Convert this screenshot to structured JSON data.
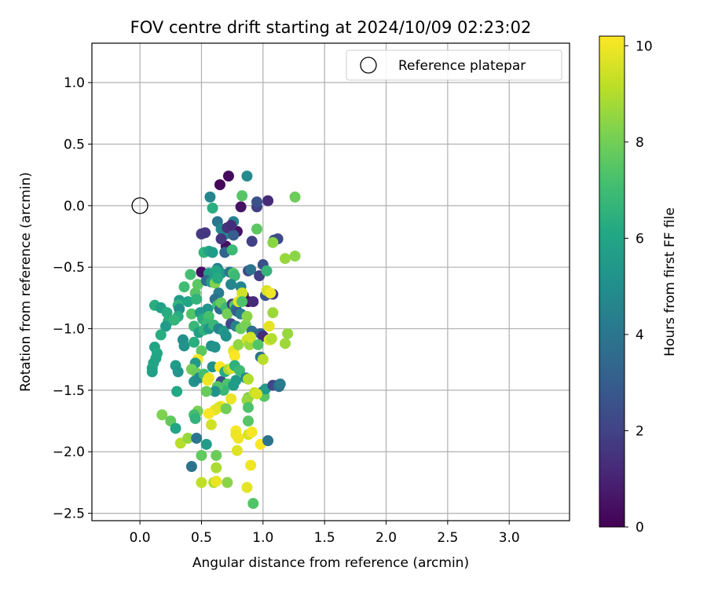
{
  "chart_data": {
    "type": "scatter",
    "title": "FOV centre drift starting at 2024/10/09 02:23:02",
    "xlabel": "Angular distance from reference (arcmin)",
    "ylabel": "Rotation from reference (arcmin)",
    "xlim": [
      -0.39,
      3.49
    ],
    "ylim": [
      -2.56,
      1.32
    ],
    "x_ticks": [
      0.0,
      0.5,
      1.0,
      1.5,
      2.0,
      2.5,
      3.0
    ],
    "x_tick_labels": [
      "0.0",
      "0.5",
      "1.0",
      "1.5",
      "2.0",
      "2.5",
      "3.0"
    ],
    "y_ticks": [
      1.0,
      0.5,
      0.0,
      -0.5,
      -1.0,
      -1.5,
      -2.0,
      -2.5
    ],
    "y_tick_labels": [
      "1.0",
      "0.5",
      "0.0",
      "−0.5",
      "−1.0",
      "−1.5",
      "−2.0",
      "−2.5"
    ],
    "grid": true,
    "legend": {
      "placement": "upper right",
      "entries": [
        "Reference platepar"
      ]
    },
    "reference_point": {
      "x": 0.0,
      "y": 0.0,
      "label": "Reference platepar"
    },
    "colorbar": {
      "label": "Hours from first FF file",
      "range": [
        0,
        10.2
      ],
      "ticks": [
        0,
        2,
        4,
        6,
        8,
        10
      ],
      "tick_labels": [
        "0",
        "2",
        "4",
        "6",
        "8",
        "10"
      ],
      "colormap": "viridis"
    },
    "series": [
      {
        "fields": [
          "x",
          "y",
          "hours"
        ],
        "points": [
          [
            0.72,
            0.24,
            0.3
          ],
          [
            0.65,
            0.17,
            0.2
          ],
          [
            0.82,
            -0.01,
            0.5
          ],
          [
            0.95,
            -0.01,
            1.9
          ],
          [
            1.04,
            0.04,
            1.2
          ],
          [
            0.95,
            0.03,
            2.5
          ],
          [
            0.87,
            0.24,
            4.8
          ],
          [
            0.57,
            0.07,
            4.6
          ],
          [
            0.59,
            -0.02,
            6.4
          ],
          [
            0.83,
            0.08,
            7.5
          ],
          [
            1.26,
            0.07,
            7.9
          ],
          [
            0.5,
            -0.23,
            1.8
          ],
          [
            0.53,
            -0.22,
            1.6
          ],
          [
            0.63,
            -0.13,
            3.9
          ],
          [
            0.66,
            -0.19,
            4.6
          ],
          [
            0.7,
            -0.23,
            4.8
          ],
          [
            0.71,
            -0.18,
            1.5
          ],
          [
            0.76,
            -0.13,
            4.5
          ],
          [
            0.79,
            -0.21,
            0.5
          ],
          [
            0.76,
            -0.24,
            3.0
          ],
          [
            0.74,
            -0.16,
            1.3
          ],
          [
            0.7,
            -0.33,
            0.4
          ],
          [
            0.69,
            -0.38,
            3.3
          ],
          [
            0.66,
            -0.27,
            1.6
          ],
          [
            0.91,
            -0.29,
            1.9
          ],
          [
            0.95,
            -0.19,
            7.6
          ],
          [
            1.09,
            -0.28,
            2.5
          ],
          [
            1.12,
            -0.27,
            2.3
          ],
          [
            1.08,
            -0.3,
            8.4
          ],
          [
            0.52,
            -0.38,
            6.6
          ],
          [
            0.56,
            -0.37,
            6.0
          ],
          [
            0.59,
            -0.38,
            5.6
          ],
          [
            0.75,
            -0.36,
            6.9
          ],
          [
            1.18,
            -0.43,
            8.6
          ],
          [
            1.26,
            -0.41,
            8.4
          ],
          [
            0.5,
            -0.54,
            0.4
          ],
          [
            0.56,
            -0.55,
            5.6
          ],
          [
            0.63,
            -0.51,
            4.4
          ],
          [
            0.66,
            -0.55,
            5.3
          ],
          [
            0.62,
            -0.53,
            6.0
          ],
          [
            0.73,
            -0.54,
            4.1
          ],
          [
            0.76,
            -0.55,
            7.4
          ],
          [
            0.77,
            -0.57,
            6.9
          ],
          [
            0.88,
            -0.53,
            2.1
          ],
          [
            0.9,
            -0.52,
            4.0
          ],
          [
            0.97,
            -0.57,
            1.9
          ],
          [
            1.0,
            -0.48,
            2.5
          ],
          [
            1.03,
            -0.53,
            6.7
          ],
          [
            0.41,
            -0.56,
            7.1
          ],
          [
            0.36,
            -0.66,
            7.0
          ],
          [
            0.45,
            -0.71,
            7.5
          ],
          [
            0.47,
            -0.64,
            7.6
          ],
          [
            0.54,
            -0.61,
            3.5
          ],
          [
            0.58,
            -0.62,
            5.6
          ],
          [
            0.61,
            -0.63,
            8.3
          ],
          [
            0.64,
            -0.71,
            4.3
          ],
          [
            0.63,
            -0.59,
            6.2
          ],
          [
            0.74,
            -0.64,
            4.7
          ],
          [
            0.82,
            -0.66,
            4.6
          ],
          [
            0.84,
            -0.73,
            1.0
          ],
          [
            0.88,
            -0.78,
            0.4
          ],
          [
            0.92,
            -0.78,
            1.2
          ],
          [
            0.83,
            -0.71,
            9.5
          ],
          [
            1.02,
            -0.73,
            2.7
          ],
          [
            1.08,
            -0.72,
            1.8
          ],
          [
            1.03,
            -0.69,
            9.6
          ],
          [
            1.06,
            -0.71,
            10.0
          ],
          [
            0.12,
            -0.81,
            6.4
          ],
          [
            0.17,
            -0.83,
            5.8
          ],
          [
            0.32,
            -0.77,
            5.6
          ],
          [
            0.31,
            -0.81,
            6.6
          ],
          [
            0.32,
            -0.84,
            5.0
          ],
          [
            0.39,
            -0.78,
            6.0
          ],
          [
            0.42,
            -0.88,
            7.4
          ],
          [
            0.46,
            -0.76,
            6.6
          ],
          [
            0.49,
            -0.87,
            5.3
          ],
          [
            0.51,
            -0.92,
            6.3
          ],
          [
            0.55,
            -0.84,
            5.3
          ],
          [
            0.56,
            -0.9,
            7.2
          ],
          [
            0.61,
            -0.76,
            3.8
          ],
          [
            0.63,
            -0.81,
            7.1
          ],
          [
            0.65,
            -0.84,
            3.7
          ],
          [
            0.66,
            -0.79,
            7.8
          ],
          [
            0.7,
            -0.83,
            6.9
          ],
          [
            0.71,
            -0.88,
            8.0
          ],
          [
            0.75,
            -0.8,
            1.8
          ],
          [
            0.77,
            -0.81,
            7.5
          ],
          [
            0.78,
            -0.84,
            4.1
          ],
          [
            0.79,
            -0.86,
            3.0
          ],
          [
            0.82,
            -0.88,
            4.3
          ],
          [
            0.8,
            -0.78,
            9.7
          ],
          [
            0.83,
            -0.78,
            7.3
          ],
          [
            1.08,
            -0.87,
            8.7
          ],
          [
            0.22,
            -0.87,
            6.3
          ],
          [
            0.23,
            -0.94,
            6.4
          ],
          [
            0.21,
            -0.98,
            5.6
          ],
          [
            0.31,
            -0.9,
            6.3
          ],
          [
            0.28,
            -0.93,
            6.7
          ],
          [
            0.44,
            -0.98,
            6.8
          ],
          [
            0.48,
            -1.03,
            5.7
          ],
          [
            0.54,
            -0.96,
            6.8
          ],
          [
            0.52,
            -1.01,
            6.6
          ],
          [
            0.56,
            -1.0,
            5.4
          ],
          [
            0.6,
            -0.97,
            6.8
          ],
          [
            0.64,
            -1.0,
            4.6
          ],
          [
            0.68,
            -1.02,
            5.4
          ],
          [
            0.7,
            -1.06,
            5.1
          ],
          [
            0.74,
            -0.96,
            2.2
          ],
          [
            0.78,
            -0.98,
            4.5
          ],
          [
            0.82,
            -1.0,
            7.9
          ],
          [
            0.86,
            -0.97,
            8.1
          ],
          [
            0.87,
            -0.9,
            8.4
          ],
          [
            0.91,
            -1.02,
            3.8
          ],
          [
            0.98,
            -1.04,
            3.2
          ],
          [
            1.0,
            -1.06,
            1.3
          ],
          [
            1.05,
            -0.98,
            9.8
          ],
          [
            1.05,
            -1.09,
            9.7
          ],
          [
            1.2,
            -1.04,
            8.6
          ],
          [
            0.17,
            -1.05,
            6.3
          ],
          [
            0.12,
            -1.15,
            6.0
          ],
          [
            0.14,
            -1.2,
            6.1
          ],
          [
            0.13,
            -1.24,
            6.0
          ],
          [
            0.11,
            -1.28,
            5.9
          ],
          [
            0.1,
            -1.32,
            6.0
          ],
          [
            0.1,
            -1.35,
            5.7
          ],
          [
            0.35,
            -1.09,
            5.0
          ],
          [
            0.36,
            -1.14,
            5.2
          ],
          [
            0.44,
            -1.11,
            6.4
          ],
          [
            0.5,
            -1.18,
            7.6
          ],
          [
            0.47,
            -1.25,
            10.1
          ],
          [
            0.45,
            -1.28,
            5.5
          ],
          [
            0.58,
            -1.14,
            5.1
          ],
          [
            0.61,
            -1.15,
            5.2
          ],
          [
            0.76,
            -1.18,
            9.8
          ],
          [
            0.77,
            -1.22,
            10.1
          ],
          [
            0.8,
            -1.13,
            8.5
          ],
          [
            0.87,
            -1.09,
            9.5
          ],
          [
            0.89,
            -1.13,
            8.7
          ],
          [
            0.9,
            -1.07,
            9.5
          ],
          [
            0.96,
            -1.13,
            7.4
          ],
          [
            0.98,
            -1.23,
            3.9
          ],
          [
            1.0,
            -1.25,
            9.1
          ],
          [
            1.06,
            -1.09,
            9.5
          ],
          [
            1.07,
            -1.08,
            9.0
          ],
          [
            1.18,
            -1.12,
            8.7
          ],
          [
            0.29,
            -1.3,
            5.6
          ],
          [
            0.31,
            -1.35,
            5.3
          ],
          [
            0.42,
            -1.33,
            8.0
          ],
          [
            0.46,
            -1.36,
            7.9
          ],
          [
            0.44,
            -1.43,
            5.2
          ],
          [
            0.48,
            -1.4,
            4.8
          ],
          [
            0.52,
            -1.37,
            7.1
          ],
          [
            0.55,
            -1.42,
            10.1
          ],
          [
            0.56,
            -1.4,
            9.9
          ],
          [
            0.59,
            -1.31,
            5.1
          ],
          [
            0.65,
            -1.31,
            10.2
          ],
          [
            0.66,
            -1.43,
            2.3
          ],
          [
            0.69,
            -1.35,
            6.2
          ],
          [
            0.72,
            -1.33,
            8.9
          ],
          [
            0.75,
            -1.32,
            9.6
          ],
          [
            0.77,
            -1.3,
            6.5
          ],
          [
            0.78,
            -1.42,
            5.5
          ],
          [
            0.81,
            -1.34,
            6.9
          ],
          [
            0.86,
            -1.4,
            4.9
          ],
          [
            0.88,
            -1.41,
            9.0
          ],
          [
            0.71,
            -1.45,
            7.3
          ],
          [
            0.76,
            -1.46,
            5.6
          ],
          [
            0.68,
            -1.5,
            6.8
          ],
          [
            0.63,
            -1.47,
            7.4
          ],
          [
            0.61,
            -1.51,
            5.2
          ],
          [
            0.54,
            -1.51,
            7.8
          ],
          [
            0.3,
            -1.51,
            6.1
          ],
          [
            0.88,
            -1.56,
            8.2
          ],
          [
            0.93,
            -1.52,
            9.3
          ],
          [
            1.0,
            -1.51,
            4.1
          ],
          [
            1.01,
            -1.55,
            7.5
          ],
          [
            1.02,
            -1.49,
            5.6
          ],
          [
            1.08,
            -1.46,
            2.2
          ],
          [
            1.12,
            -1.46,
            2.6
          ],
          [
            1.13,
            -1.47,
            3.7
          ],
          [
            1.14,
            -1.45,
            4.2
          ],
          [
            0.95,
            -1.53,
            9.6
          ],
          [
            0.87,
            -1.58,
            8.6
          ],
          [
            0.74,
            -1.57,
            9.9
          ],
          [
            0.66,
            -1.63,
            10.2
          ],
          [
            0.64,
            -1.64,
            9.5
          ],
          [
            0.7,
            -1.65,
            8.0
          ],
          [
            0.61,
            -1.66,
            9.8
          ],
          [
            0.56,
            -1.69,
            10.1
          ],
          [
            0.47,
            -1.67,
            8.1
          ],
          [
            0.44,
            -1.7,
            7.1
          ],
          [
            0.45,
            -1.73,
            6.6
          ],
          [
            0.18,
            -1.7,
            8.2
          ],
          [
            0.25,
            -1.75,
            7.7
          ],
          [
            0.29,
            -1.81,
            6.0
          ],
          [
            0.58,
            -1.78,
            9.5
          ],
          [
            0.88,
            -1.64,
            7.3
          ],
          [
            0.88,
            -1.75,
            7.5
          ],
          [
            0.78,
            -1.83,
            10.1
          ],
          [
            0.78,
            -1.86,
            9.9
          ],
          [
            0.8,
            -1.89,
            10.0
          ],
          [
            0.88,
            -1.86,
            9.6
          ],
          [
            0.91,
            -1.84,
            10.1
          ],
          [
            0.98,
            -1.94,
            10.2
          ],
          [
            1.04,
            -1.91,
            3.9
          ],
          [
            0.33,
            -1.93,
            9.1
          ],
          [
            0.39,
            -1.89,
            8.6
          ],
          [
            0.46,
            -1.89,
            4.0
          ],
          [
            0.54,
            -1.94,
            5.6
          ],
          [
            0.5,
            -2.03,
            7.7
          ],
          [
            0.62,
            -2.03,
            7.9
          ],
          [
            0.79,
            -1.99,
            9.7
          ],
          [
            0.42,
            -2.12,
            3.9
          ],
          [
            0.62,
            -2.13,
            8.9
          ],
          [
            0.9,
            -2.11,
            10.0
          ],
          [
            0.5,
            -2.25,
            9.2
          ],
          [
            0.6,
            -2.25,
            9.0
          ],
          [
            0.62,
            -2.24,
            9.9
          ],
          [
            0.71,
            -2.25,
            8.4
          ],
          [
            0.87,
            -2.29,
            9.8
          ],
          [
            0.92,
            -2.42,
            7.4
          ]
        ]
      }
    ]
  }
}
